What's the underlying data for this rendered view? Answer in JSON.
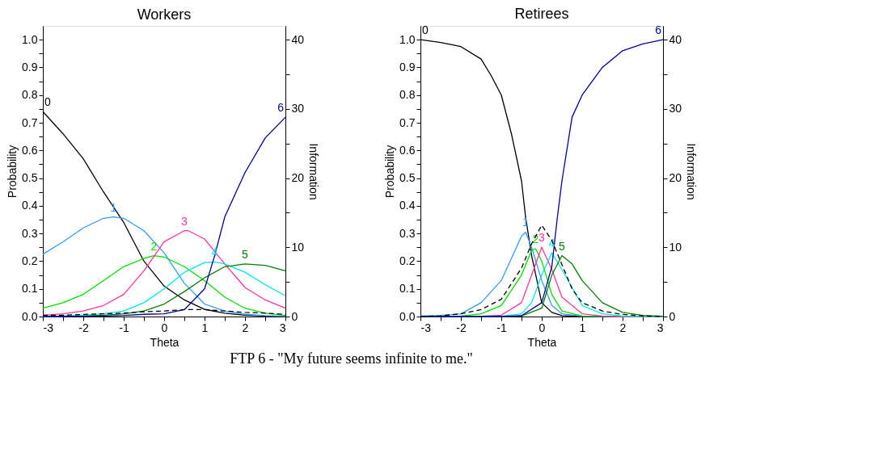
{
  "chart_data": [
    {
      "type": "line",
      "title": "Workers",
      "xlabel": "Theta",
      "ylabel": "Probability",
      "y2label": "Information",
      "xlim": [
        -3,
        3
      ],
      "xticks": [
        -3,
        {
          "value": -2.5,
          "label": null
        },
        -2,
        {
          "value": -1.5,
          "label": null
        },
        -1,
        {
          "value": -0.5,
          "label": null
        },
        0,
        {
          "value": 0.5,
          "label": null
        },
        1,
        {
          "value": 1.5,
          "label": null
        },
        2,
        {
          "value": 2.5,
          "label": null
        },
        3
      ],
      "ylim": [
        0,
        1.05
      ],
      "yticks": [
        {
          "value": 0,
          "label": "0.0"
        },
        {
          "value": 0.05,
          "label": null
        },
        {
          "value": 0.1,
          "label": "0.1"
        },
        {
          "value": 0.15,
          "label": null
        },
        {
          "value": 0.2,
          "label": "0.2"
        },
        {
          "value": 0.25,
          "label": null
        },
        {
          "value": 0.3,
          "label": "0.3"
        },
        {
          "value": 0.35,
          "label": null
        },
        {
          "value": 0.4,
          "label": "0.4"
        },
        {
          "value": 0.45,
          "label": null
        },
        {
          "value": 0.5,
          "label": "0.5"
        },
        {
          "value": 0.55,
          "label": null
        },
        {
          "value": 0.6,
          "label": "0.6"
        },
        {
          "value": 0.65,
          "label": null
        },
        {
          "value": 0.7,
          "label": "0.7"
        },
        {
          "value": 0.75,
          "label": null
        },
        {
          "value": 0.8,
          "label": "0.8"
        },
        {
          "value": 0.85,
          "label": null
        },
        {
          "value": 0.9,
          "label": "0.9"
        },
        {
          "value": 0.95,
          "label": null
        },
        {
          "value": 1,
          "label": "1.0"
        }
      ],
      "y2lim": [
        0,
        42
      ],
      "y2ticks": [
        0,
        {
          "value": 5,
          "label": null
        },
        10,
        {
          "value": 15,
          "label": null
        },
        20,
        {
          "value": 25,
          "label": null
        },
        30,
        {
          "value": 35,
          "label": null
        },
        40
      ],
      "grid": false,
      "legend": false,
      "annotations": [
        "FTP 6 - \"My future seems infinite to me.\""
      ],
      "series": [
        {
          "name": "0",
          "color": "#000000",
          "x": [
            -3,
            -2.5,
            -2,
            -1.5,
            -1,
            -0.5,
            0,
            0.5,
            1,
            1.5,
            2,
            2.5,
            3
          ],
          "values": [
            0.74,
            0.66,
            0.57,
            0.45,
            0.34,
            0.2,
            0.11,
            0.06,
            0.026,
            0.012,
            0.005,
            0.002,
            0.001
          ]
        },
        {
          "name": "1",
          "color": "#3399ff",
          "x": [
            -3,
            -2.5,
            -2,
            -1.5,
            -1.25,
            -1,
            -0.5,
            0,
            0.5,
            1,
            1.5,
            2,
            2.5,
            3
          ],
          "values": [
            0.225,
            0.27,
            0.32,
            0.355,
            0.36,
            0.355,
            0.31,
            0.23,
            0.12,
            0.045,
            0.02,
            0.008,
            0.003,
            0.001
          ]
        },
        {
          "name": "2",
          "color": "#00dd00",
          "x": [
            -3,
            -2.5,
            -2,
            -1.5,
            -1,
            -0.5,
            -0.25,
            0,
            0.5,
            1,
            1.5,
            2,
            2.5,
            3
          ],
          "values": [
            0.03,
            0.05,
            0.08,
            0.13,
            0.18,
            0.21,
            0.22,
            0.215,
            0.18,
            0.13,
            0.07,
            0.03,
            0.012,
            0.004
          ]
        },
        {
          "name": "3",
          "color": "#ff3399",
          "x": [
            -3,
            -2.5,
            -2,
            -1.5,
            -1,
            -0.5,
            0,
            0.5,
            0.6,
            1,
            1.5,
            2,
            2.5,
            3
          ],
          "values": [
            0.005,
            0.01,
            0.02,
            0.04,
            0.08,
            0.165,
            0.27,
            0.31,
            0.31,
            0.28,
            0.19,
            0.105,
            0.06,
            0.03
          ]
        },
        {
          "name": "4",
          "color": "#00e5ee",
          "x": [
            -3,
            -2.5,
            -2,
            -1.5,
            -1,
            -0.5,
            0,
            0.5,
            1,
            1.25,
            1.5,
            2,
            2.5,
            3
          ],
          "values": [
            0,
            0.002,
            0.005,
            0.01,
            0.02,
            0.05,
            0.1,
            0.16,
            0.195,
            0.197,
            0.19,
            0.16,
            0.115,
            0.075
          ]
        },
        {
          "name": "5",
          "color": "#008000",
          "x": [
            -3,
            -2.5,
            -2,
            -1.5,
            -1,
            -0.5,
            0,
            0.5,
            1,
            1.5,
            2,
            2.5,
            3
          ],
          "values": [
            0,
            0.001,
            0.002,
            0.005,
            0.01,
            0.02,
            0.045,
            0.09,
            0.14,
            0.18,
            0.19,
            0.185,
            0.165
          ]
        },
        {
          "name": "6",
          "color": "#000099",
          "x": [
            -3,
            -2.5,
            -2,
            -1.5,
            -1,
            -0.5,
            0,
            0.5,
            1,
            1.25,
            1.5,
            2,
            2.5,
            3
          ],
          "values": [
            0,
            0,
            0.001,
            0.002,
            0.004,
            0.008,
            0.01,
            0.025,
            0.1,
            0.22,
            0.36,
            0.52,
            0.645,
            0.72
          ]
        },
        {
          "color": "#000000",
          "axis": "y2",
          "line_style": "dashed",
          "x": [
            -3,
            -2.5,
            -2,
            -1.5,
            -1,
            -0.5,
            0,
            0.5,
            1,
            1.5,
            2,
            2.5,
            3
          ],
          "values": [
            0.2,
            0.2,
            0.3,
            0.4,
            0.5,
            0.7,
            0.8,
            1.0,
            1.0,
            0.8,
            0.6,
            0.5,
            0.3
          ]
        }
      ]
    },
    {
      "type": "line",
      "title": "Retirees",
      "xlabel": "Theta",
      "ylabel": "Probability",
      "y2label": "Information",
      "xlim": [
        -3,
        3
      ],
      "xticks": [
        -3,
        {
          "value": -2.5,
          "label": null
        },
        -2,
        {
          "value": -1.5,
          "label": null
        },
        -1,
        {
          "value": -0.5,
          "label": null
        },
        0,
        {
          "value": 0.5,
          "label": null
        },
        1,
        {
          "value": 1.5,
          "label": null
        },
        2,
        {
          "value": 2.5,
          "label": null
        },
        3
      ],
      "ylim": [
        0,
        1.05
      ],
      "yticks": [
        {
          "value": 0,
          "label": "0.0"
        },
        {
          "value": 0.05,
          "label": null
        },
        {
          "value": 0.1,
          "label": "0.1"
        },
        {
          "value": 0.15,
          "label": null
        },
        {
          "value": 0.2,
          "label": "0.2"
        },
        {
          "value": 0.25,
          "label": null
        },
        {
          "value": 0.3,
          "label": "0.3"
        },
        {
          "value": 0.35,
          "label": null
        },
        {
          "value": 0.4,
          "label": "0.4"
        },
        {
          "value": 0.45,
          "label": null
        },
        {
          "value": 0.5,
          "label": "0.5"
        },
        {
          "value": 0.55,
          "label": null
        },
        {
          "value": 0.6,
          "label": "0.6"
        },
        {
          "value": 0.65,
          "label": null
        },
        {
          "value": 0.7,
          "label": "0.7"
        },
        {
          "value": 0.75,
          "label": null
        },
        {
          "value": 0.8,
          "label": "0.8"
        },
        {
          "value": 0.85,
          "label": null
        },
        {
          "value": 0.9,
          "label": "0.9"
        },
        {
          "value": 0.95,
          "label": null
        },
        {
          "value": 1,
          "label": "1.0"
        }
      ],
      "y2lim": [
        0,
        42
      ],
      "y2ticks": [
        0,
        {
          "value": 5,
          "label": null
        },
        10,
        {
          "value": 15,
          "label": null
        },
        20,
        {
          "value": 25,
          "label": null
        },
        30,
        {
          "value": 35,
          "label": null
        },
        40
      ],
      "grid": false,
      "legend": false,
      "series": [
        {
          "name": "0",
          "color": "#000000",
          "x": [
            -3,
            -2.5,
            -2,
            -1.5,
            -1.25,
            -1,
            -0.75,
            -0.5,
            -0.4,
            -0.25,
            0,
            0.25,
            0.5,
            1,
            2,
            3
          ],
          "values": [
            1.0,
            0.99,
            0.975,
            0.93,
            0.87,
            0.8,
            0.66,
            0.49,
            0.36,
            0.22,
            0.05,
            0.015,
            0.003,
            0,
            0,
            0
          ]
        },
        {
          "name": "1",
          "color": "#3399ff",
          "x": [
            -3,
            -2.5,
            -2,
            -1.5,
            -1,
            -0.75,
            -0.5,
            -0.4,
            -0.25,
            0,
            0.25,
            0.5,
            1,
            2,
            3
          ],
          "values": [
            0.002,
            0.004,
            0.01,
            0.05,
            0.13,
            0.21,
            0.29,
            0.305,
            0.25,
            0.13,
            0.04,
            0.01,
            0.001,
            0,
            0
          ]
        },
        {
          "name": "2",
          "color": "#00dd00",
          "x": [
            -3,
            -2,
            -1.5,
            -1,
            -0.5,
            -0.25,
            -0.15,
            0,
            0.25,
            0.5,
            1,
            2,
            3
          ],
          "values": [
            0,
            0.002,
            0.01,
            0.04,
            0.15,
            0.24,
            0.245,
            0.2,
            0.08,
            0.02,
            0.002,
            0,
            0
          ]
        },
        {
          "name": "3",
          "color": "#ff3399",
          "x": [
            -3,
            -1.5,
            -1,
            -0.5,
            -0.25,
            0,
            0.25,
            0.5,
            1,
            1.5,
            2,
            3
          ],
          "values": [
            0,
            0.001,
            0.005,
            0.05,
            0.15,
            0.25,
            0.17,
            0.07,
            0.01,
            0.002,
            0,
            0
          ]
        },
        {
          "name": "4",
          "color": "#00e5ee",
          "x": [
            -3,
            -1,
            -0.5,
            -0.25,
            0,
            0.25,
            0.5,
            1,
            1.5,
            2,
            3
          ],
          "values": [
            0,
            0.001,
            0.01,
            0.05,
            0.15,
            0.23,
            0.17,
            0.04,
            0.01,
            0.002,
            0
          ]
        },
        {
          "name": "5",
          "color": "#008000",
          "x": [
            -3,
            -1,
            -0.5,
            0,
            0.25,
            0.5,
            0.75,
            1,
            1.5,
            2,
            2.5,
            3
          ],
          "values": [
            0,
            0,
            0.002,
            0.03,
            0.15,
            0.22,
            0.19,
            0.13,
            0.05,
            0.015,
            0.004,
            0.001
          ]
        },
        {
          "name": "6",
          "color": "#000099",
          "x": [
            -3,
            -1,
            -0.5,
            0,
            0.25,
            0.38,
            0.5,
            0.75,
            1,
            1.5,
            2,
            2.5,
            3
          ],
          "values": [
            0,
            0,
            0.003,
            0.05,
            0.18,
            0.35,
            0.49,
            0.72,
            0.8,
            0.9,
            0.96,
            0.985,
            1.0
          ]
        },
        {
          "color": "#000000",
          "axis": "y2",
          "line_style": "dashed",
          "x": [
            -3,
            -2.5,
            -2,
            -1.5,
            -1,
            -0.5,
            -0.25,
            0,
            0.25,
            0.5,
            0.75,
            1,
            1.5,
            2,
            2.5,
            3
          ],
          "values": [
            0,
            0.1,
            0.4,
            1.0,
            2.5,
            7.0,
            10.5,
            13.2,
            11.0,
            7.5,
            4.0,
            2.0,
            0.8,
            0.3,
            0.1,
            0
          ]
        }
      ]
    }
  ]
}
